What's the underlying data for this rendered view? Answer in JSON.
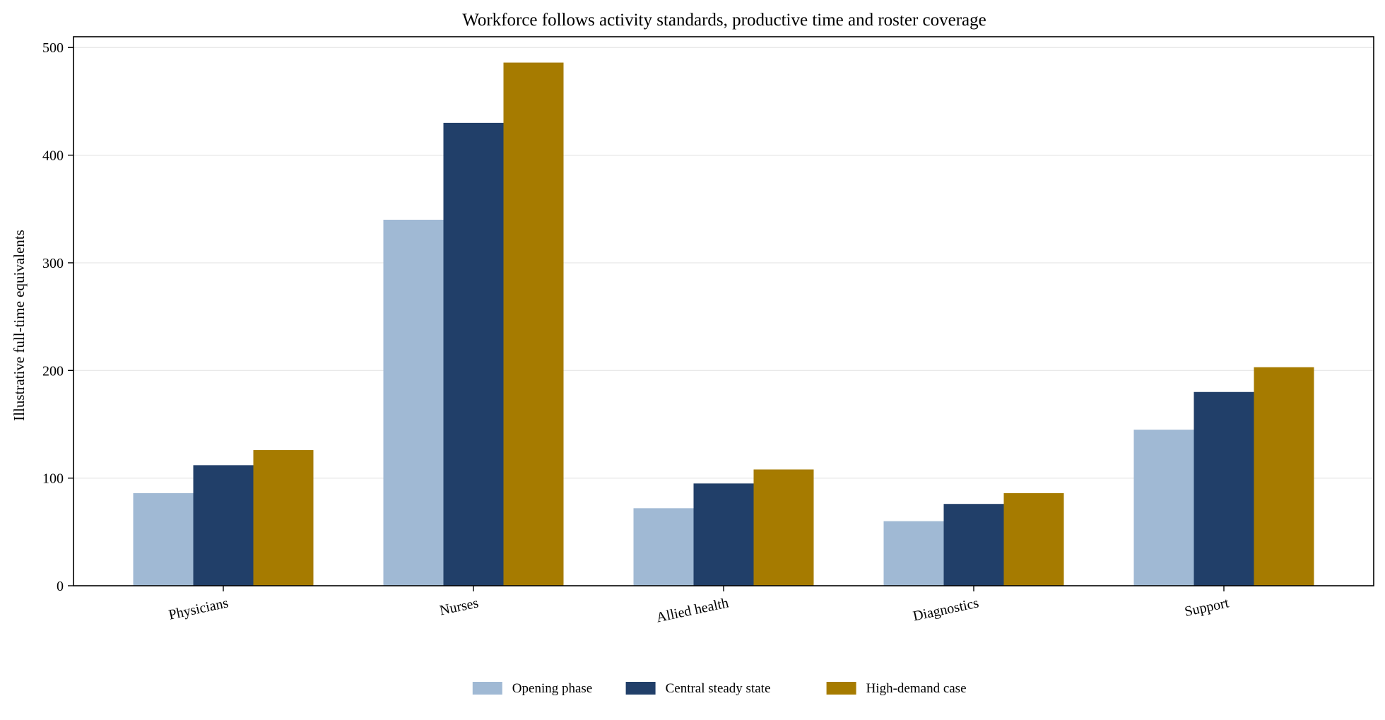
{
  "chart_data": {
    "type": "bar",
    "title": "Workforce follows activity standards, productive time and roster coverage",
    "xlabel": "",
    "ylabel": "Illustrative full-time equivalents",
    "categories": [
      "Physicians",
      "Nurses",
      "Allied health",
      "Diagnostics",
      "Support"
    ],
    "series": [
      {
        "name": "Opening phase",
        "color": "#a0b9d4",
        "values": [
          86,
          340,
          72,
          60,
          145
        ]
      },
      {
        "name": "Central steady state",
        "color": "#213f69",
        "values": [
          112,
          430,
          95,
          76,
          180
        ]
      },
      {
        "name": "High-demand case",
        "color": "#a67b00",
        "values": [
          126,
          486,
          108,
          86,
          203
        ]
      }
    ],
    "ylim": [
      0,
      510
    ],
    "yticks": [
      0,
      100,
      200,
      300,
      400,
      500
    ],
    "grid": "horizontal",
    "legend_position": "bottom-center"
  }
}
